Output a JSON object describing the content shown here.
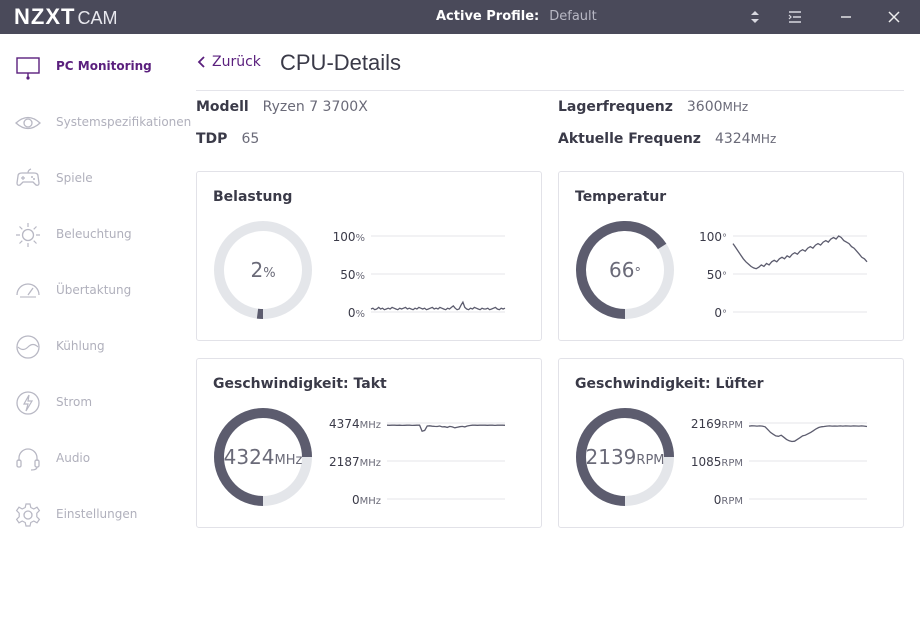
{
  "titlebar": {
    "brand": "NZXT",
    "app": "CAM",
    "profile_label": "Active Profile:",
    "profile_value": "Default"
  },
  "sidebar": {
    "items": [
      {
        "label": "PC Monitoring",
        "icon": "monitor-icon",
        "active": true
      },
      {
        "label": "Systemspezifikationen",
        "icon": "eye-icon",
        "active": false
      },
      {
        "label": "Spiele",
        "icon": "gamepad-icon",
        "active": false
      },
      {
        "label": "Beleuchtung",
        "icon": "sun-icon",
        "active": false
      },
      {
        "label": "Übertaktung",
        "icon": "speedometer-icon",
        "active": false
      },
      {
        "label": "Kühlung",
        "icon": "cooling-icon",
        "active": false
      },
      {
        "label": "Strom",
        "icon": "lightning-icon",
        "active": false
      },
      {
        "label": "Audio",
        "icon": "headset-icon",
        "active": false
      },
      {
        "label": "Einstellungen",
        "icon": "gear-icon",
        "active": false
      }
    ]
  },
  "main": {
    "back_label": "Zurück",
    "title": "CPU-Details",
    "specs": {
      "model_label": "Modell",
      "model_value": "Ryzen 7 3700X",
      "tdp_label": "TDP",
      "tdp_value": "65",
      "base_label": "Lagerfrequenz",
      "base_value": "3600",
      "base_unit": "MHz",
      "cur_label": "Aktuelle Frequenz",
      "cur_value": "4324",
      "cur_unit": "MHz"
    }
  },
  "cards": {
    "load": {
      "title": "Belastung",
      "value": "2",
      "unit": "%",
      "fraction": 0.02,
      "y_labels": [
        {
          "v": "100",
          "u": "%"
        },
        {
          "v": "50",
          "u": "%"
        },
        {
          "v": "0",
          "u": "%"
        }
      ],
      "y_max": 100,
      "series": [
        4,
        5,
        3,
        4,
        6,
        4,
        5,
        3,
        4,
        5,
        4,
        6,
        5,
        4,
        3,
        5,
        4,
        5,
        6,
        4,
        5,
        4,
        3,
        5,
        4,
        6,
        5,
        4,
        5,
        3,
        4,
        5,
        6,
        4,
        5,
        4,
        6,
        5,
        4,
        3,
        5,
        4,
        6,
        8,
        5,
        3,
        4,
        9,
        13,
        6,
        4,
        3,
        5,
        4,
        6,
        5,
        4,
        3,
        5,
        4,
        4,
        5,
        3,
        4,
        5,
        6,
        4,
        3,
        5,
        4,
        5
      ]
    },
    "temp": {
      "title": "Temperatur",
      "value": "66",
      "unit": "°",
      "fraction": 0.66,
      "y_labels": [
        {
          "v": "100",
          "u": "°"
        },
        {
          "v": "50",
          "u": "°"
        },
        {
          "v": "0",
          "u": "°"
        }
      ],
      "y_max": 100,
      "series": [
        90,
        85,
        80,
        75,
        70,
        66,
        63,
        60,
        58,
        57,
        59,
        62,
        60,
        64,
        62,
        66,
        68,
        66,
        70,
        72,
        70,
        74,
        72,
        76,
        78,
        76,
        80,
        82,
        80,
        84,
        86,
        84,
        88,
        90,
        88,
        92,
        94,
        92,
        96,
        98,
        96,
        100,
        98,
        94,
        92,
        90,
        86,
        84,
        80,
        76,
        72,
        70,
        66
      ]
    },
    "clock": {
      "title": "Geschwindigkeit: Takt",
      "value": "4324",
      "unit": "MHz",
      "fraction": 0.75,
      "y_labels": [
        {
          "v": "4374",
          "u": "MHz"
        },
        {
          "v": "2187",
          "u": "MHz"
        },
        {
          "v": "0",
          "u": "MHz"
        }
      ],
      "y_max": 4374,
      "series": [
        4250,
        4240,
        4245,
        4250,
        4242,
        4248,
        4235,
        4240,
        4250,
        4245,
        4238,
        4242,
        4248,
        4250,
        3900,
        3950,
        4200,
        4210,
        4190,
        4180,
        4170,
        4200,
        4150,
        4160,
        4120,
        4180,
        4150,
        4100,
        4130,
        4160,
        4180,
        4150,
        4200,
        4230,
        4250,
        4245,
        4240,
        4250,
        4245,
        4248,
        4240,
        4250,
        4245,
        4238,
        4250,
        4255,
        4250,
        4240
      ]
    },
    "fan": {
      "title": "Geschwindigkeit: Lüfter",
      "value": "2139",
      "unit": "RPM",
      "fraction": 0.75,
      "y_labels": [
        {
          "v": "2169",
          "u": "RPM"
        },
        {
          "v": "1085",
          "u": "RPM"
        },
        {
          "v": "0",
          "u": "RPM"
        }
      ],
      "y_max": 2169,
      "series": [
        2080,
        2090,
        2085,
        2080,
        2085,
        2080,
        2060,
        1980,
        1900,
        1850,
        1800,
        1790,
        1820,
        1760,
        1700,
        1660,
        1640,
        1650,
        1700,
        1750,
        1800,
        1820,
        1860,
        1900,
        1950,
        2000,
        2040,
        2060,
        2070,
        2080,
        2085,
        2080,
        2082,
        2080,
        2085,
        2080,
        2085,
        2082,
        2080,
        2085,
        2083,
        2080,
        2085,
        2080,
        2070
      ]
    }
  },
  "colors": {
    "accent": "#5a1f7d",
    "titlebar": "#4a4a5a",
    "gauge_fg": "#5c5c6e",
    "gauge_bg": "#e4e6ea",
    "line": "#5c5c6e",
    "grid": "#e6e6ea"
  }
}
